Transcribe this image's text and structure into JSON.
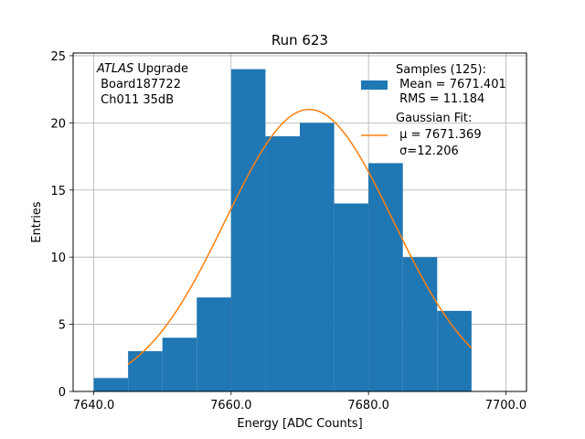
{
  "chart_data": {
    "type": "bar",
    "title": "Run 623",
    "xlabel": "Energy [ADC Counts]",
    "ylabel": "Entries",
    "xlim": [
      7637,
      7703
    ],
    "ylim": [
      0,
      25.2
    ],
    "xticks": [
      7640,
      7660,
      7680,
      7700
    ],
    "xtick_labels": [
      "7640.0",
      "7660.0",
      "7680.0",
      "7700.0"
    ],
    "yticks": [
      0,
      5,
      10,
      15,
      20,
      25
    ],
    "ytick_labels": [
      "0",
      "5",
      "10",
      "15",
      "20",
      "25"
    ],
    "grid": true,
    "histogram": {
      "name": "Samples (125):",
      "color": "#1f77b4",
      "bins": [
        {
          "x0": 7640,
          "x1": 7645,
          "count": 1
        },
        {
          "x0": 7645,
          "x1": 7650,
          "count": 3
        },
        {
          "x0": 7650,
          "x1": 7655,
          "count": 4
        },
        {
          "x0": 7655,
          "x1": 7660,
          "count": 7
        },
        {
          "x0": 7660,
          "x1": 7665,
          "count": 24
        },
        {
          "x0": 7665,
          "x1": 7670,
          "count": 19
        },
        {
          "x0": 7670,
          "x1": 7675,
          "count": 20
        },
        {
          "x0": 7675,
          "x1": 7680,
          "count": 14
        },
        {
          "x0": 7680,
          "x1": 7685,
          "count": 17
        },
        {
          "x0": 7685,
          "x1": 7690,
          "count": 10
        },
        {
          "x0": 7690,
          "x1": 7695,
          "count": 6
        }
      ]
    },
    "fit": {
      "name": "Gaussian Fit:",
      "color": "#ff7f0e",
      "mu": 7671.369,
      "sigma": 12.206,
      "amplitude": 21.0,
      "x_range": [
        7645,
        7695
      ]
    },
    "annotation": {
      "line1_italic": "ATLAS",
      "line1_rest": " Upgrade",
      "line2": " Board187722",
      "line3": " Ch011 35dB"
    },
    "legend": {
      "placement": "top-right",
      "hist_lines": [
        "Samples (125):",
        " Mean = 7671.401",
        " RMS = 11.184"
      ],
      "fit_lines": [
        "Gaussian Fit:",
        " μ = 7671.369",
        " σ=12.206"
      ]
    }
  }
}
